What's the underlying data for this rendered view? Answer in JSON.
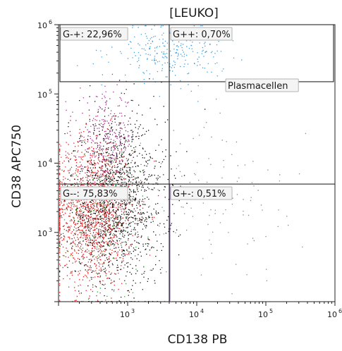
{
  "chart_data": {
    "type": "scatter",
    "title": "[LEUKO]",
    "xlabel": "CD138 PB",
    "ylabel": "CD38 APC750",
    "x_scale": "log",
    "y_scale": "log",
    "xlim": [
      100,
      1000000
    ],
    "ylim": [
      100,
      1000000
    ],
    "x_ticks": [
      {
        "value": 1000,
        "base": "10",
        "exp": "3"
      },
      {
        "value": 10000,
        "base": "10",
        "exp": "4"
      },
      {
        "value": 100000,
        "base": "10",
        "exp": "5"
      },
      {
        "value": 1000000,
        "base": "10",
        "exp": "6"
      }
    ],
    "y_ticks": [
      {
        "value": 1000,
        "base": "10",
        "exp": "3"
      },
      {
        "value": 10000,
        "base": "10",
        "exp": "4"
      },
      {
        "value": 100000,
        "base": "10",
        "exp": "5"
      },
      {
        "value": 1000000,
        "base": "10",
        "exp": "6"
      }
    ],
    "quadrant_split": {
      "x": 4000,
      "y": 5000
    },
    "quadrants": [
      {
        "name": "G-+",
        "label": "G-+: 22,96%",
        "percent": 22.96
      },
      {
        "name": "G++",
        "label": "G++: 0,70%",
        "percent": 0.7
      },
      {
        "name": "G--",
        "label": "G--: 75,83%",
        "percent": 75.83
      },
      {
        "name": "G+-",
        "label": "G+-: 0,51%",
        "percent": 0.51
      }
    ],
    "gate": {
      "label": "Plasmacellen",
      "x_range": [
        100,
        1000000
      ],
      "y_range": [
        150000,
        1000000
      ],
      "color": "#4aa8e0"
    },
    "populations": [
      {
        "color": "#e02020",
        "center": [
          300,
          2000
        ],
        "spread_x_decades": 0.3,
        "spread_y_decades": 0.55
      },
      {
        "color": "#111111",
        "center": [
          700,
          3000
        ],
        "spread_x_decades": 0.35,
        "spread_y_decades": 0.6
      },
      {
        "color": "#a03090",
        "center": [
          500,
          25000
        ],
        "spread_x_decades": 0.2,
        "spread_y_decades": 0.3
      },
      {
        "color": "#3aa0e0",
        "center": [
          4000,
          400000
        ],
        "spread_x_decades": 0.4,
        "spread_y_decades": 0.2
      },
      {
        "color": "#2ca02c",
        "center": [
          400,
          1500
        ],
        "spread_x_decades": 0.35,
        "spread_y_decades": 0.6
      },
      {
        "color": "#888888",
        "center": [
          20000,
          3000
        ],
        "spread_x_decades": 0.6,
        "spread_y_decades": 0.6
      }
    ],
    "colors": {
      "frame": "#222222",
      "quadrant_lines": "#111111",
      "gate_box": "#111111",
      "mid_line": "#9070b0"
    }
  }
}
